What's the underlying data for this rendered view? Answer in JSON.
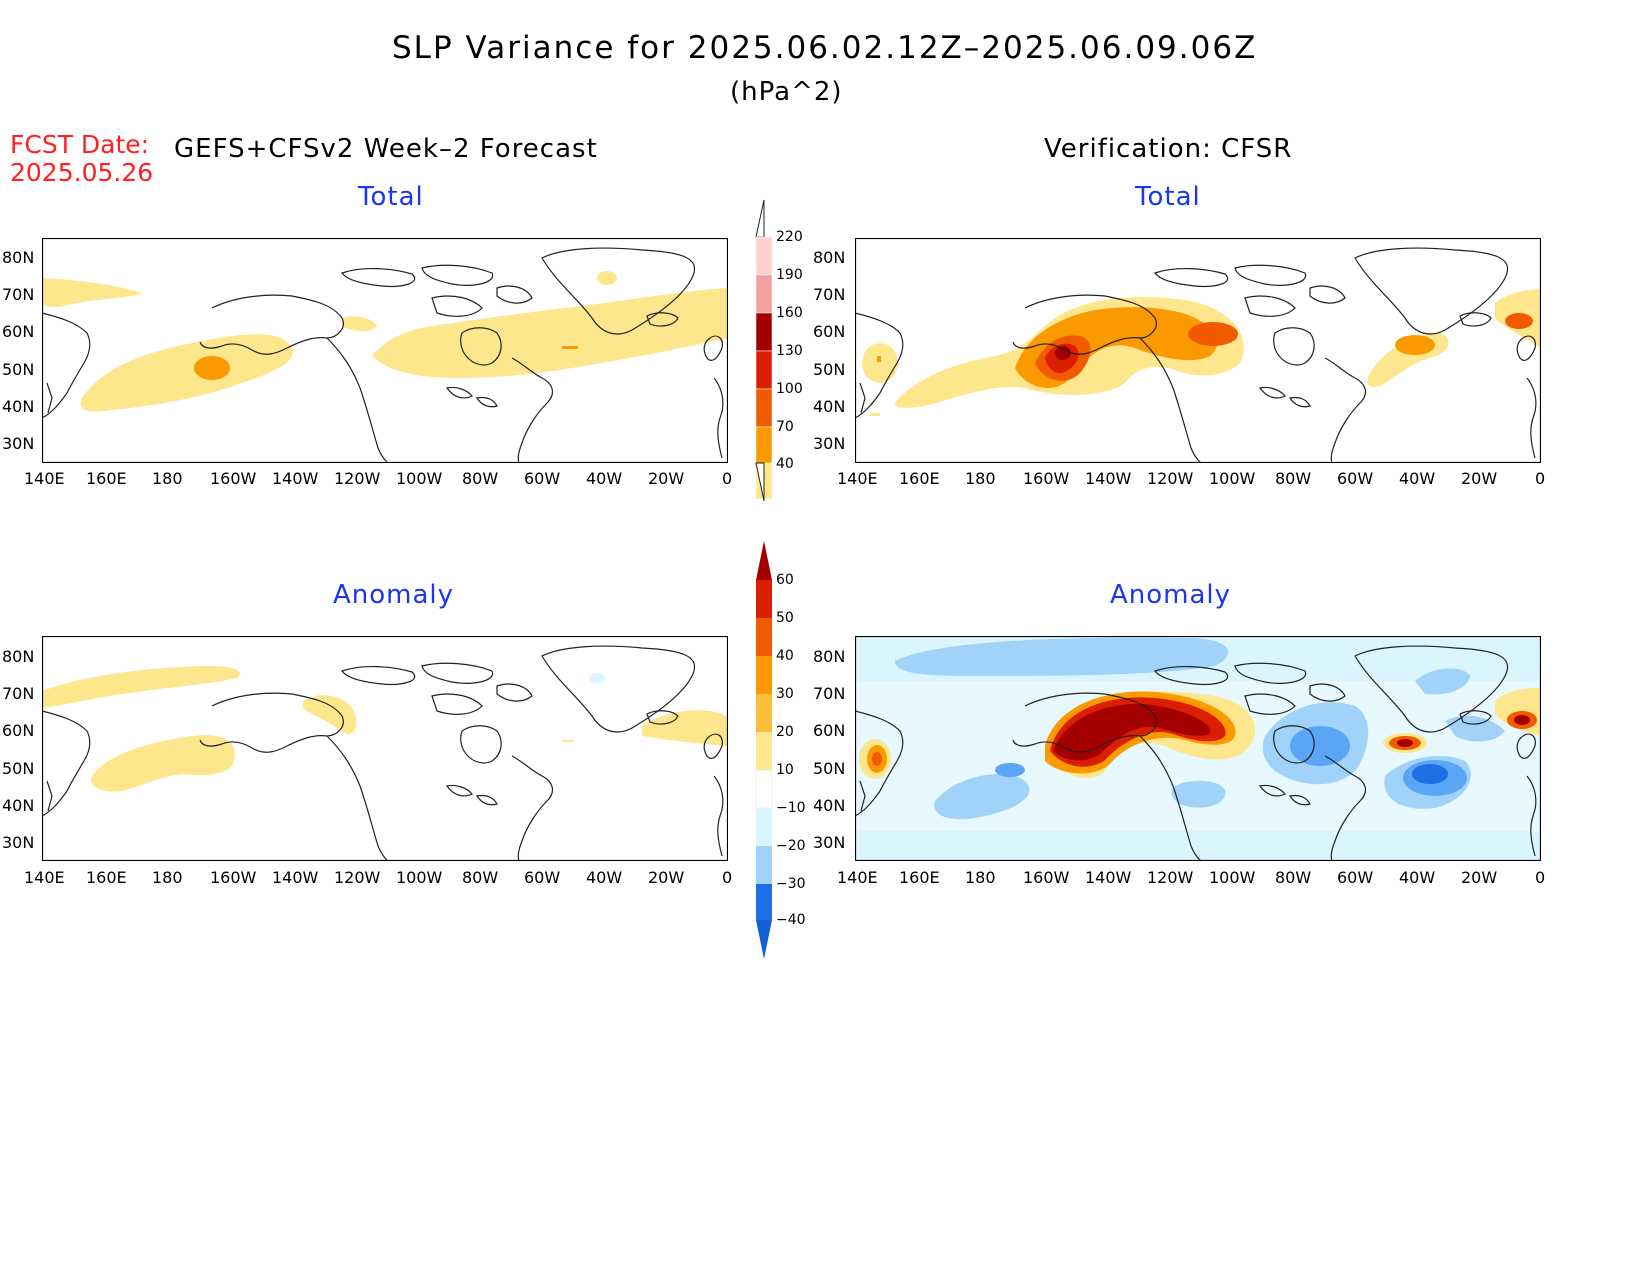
{
  "title": "SLP Variance for 2025.06.02.12Z–2025.06.09.06Z",
  "units": "(hPa^2)",
  "fcst_date_label": "FCST Date:",
  "fcst_date_value": "2025.05.26",
  "left_header": "GEFS+CFSv2 Week–2 Forecast",
  "right_header": "Verification: CFSR",
  "panels": {
    "fc_total_title": "Total",
    "ver_total_title": "Total",
    "fc_anom_title": "Anomaly",
    "ver_anom_title": "Anomaly"
  },
  "lat_labels": [
    "80N",
    "70N",
    "60N",
    "50N",
    "40N",
    "30N"
  ],
  "lon_labels": [
    "140E",
    "160E",
    "180",
    "160W",
    "140W",
    "120W",
    "100W",
    "80W",
    "60W",
    "40W",
    "20W",
    "0"
  ],
  "total_colorbar": {
    "levels": [
      "220",
      "190",
      "160",
      "130",
      "100",
      "70",
      "40"
    ],
    "colors": [
      "#ffd0d0",
      "#f2a0a0",
      "#a50000",
      "#dc1e00",
      "#f25a00",
      "#fa9a00",
      "#fee68c"
    ]
  },
  "anom_colorbar": {
    "levels": [
      "60",
      "50",
      "40",
      "30",
      "20",
      "10",
      "−10",
      "−20",
      "−30",
      "−40"
    ],
    "colors": [
      "#a50000",
      "#dc1e00",
      "#f25a00",
      "#fa9a00",
      "#fdbe3c",
      "#fee68c",
      "#ffffff",
      "#dbf5ff",
      "#a0d2fa",
      "#5aa5f5",
      "#1e6ee6"
    ]
  }
}
